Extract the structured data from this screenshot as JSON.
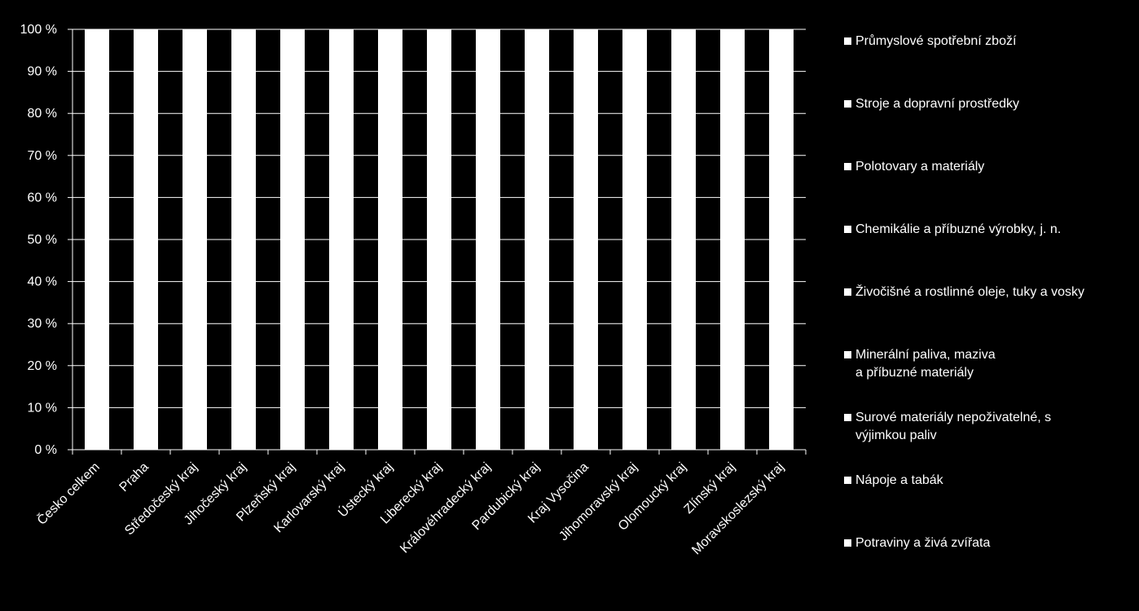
{
  "chart_data": {
    "type": "bar",
    "stacked": true,
    "stack_mode": "percent",
    "categories": [
      "Česko celkem",
      "Praha",
      "Středočeský kraj",
      "Jihočeský kraj",
      "Plzeňský kraj",
      "Karlovarský kraj",
      "Ústecký kraj",
      "Liberecký kraj",
      "Královéhradecký kraj",
      "Pardubický kraj",
      "Kraj Vysočina",
      "Jihomoravský kraj",
      "Olomoucký kraj",
      "Zlínský kraj",
      "Moravskoslezský kraj"
    ],
    "series": [
      {
        "name": "Průmyslové spotřební zboží"
      },
      {
        "name": "Stroje a dopravní prostředky"
      },
      {
        "name": "Polotovary a materiály"
      },
      {
        "name": "Chemikálie a příbuzné výrobky, j. n."
      },
      {
        "name": "Živočišné a rostlinné oleje, tuky a vosky"
      },
      {
        "name": "Minerální paliva, maziva\na příbuzné materiály"
      },
      {
        "name": "Surové materiály nepoživatelné, s\nvýjimkou paliv"
      },
      {
        "name": "Nápoje a tabák"
      },
      {
        "name": "Potraviny a živá zvířata"
      }
    ],
    "totals": [
      100,
      100,
      100,
      100,
      100,
      100,
      100,
      100,
      100,
      100,
      100,
      100,
      100,
      100,
      100
    ],
    "y_ticks": [
      "0 %",
      "10 %",
      "20 %",
      "30 %",
      "40 %",
      "50 %",
      "60 %",
      "70 %",
      "80 %",
      "90 %",
      "100 %"
    ],
    "ylim": [
      0,
      100
    ],
    "grid": true,
    "legend_position": "right",
    "colors": {
      "background": "#000000",
      "bars": "#ffffff",
      "text": "#ffffff"
    }
  }
}
